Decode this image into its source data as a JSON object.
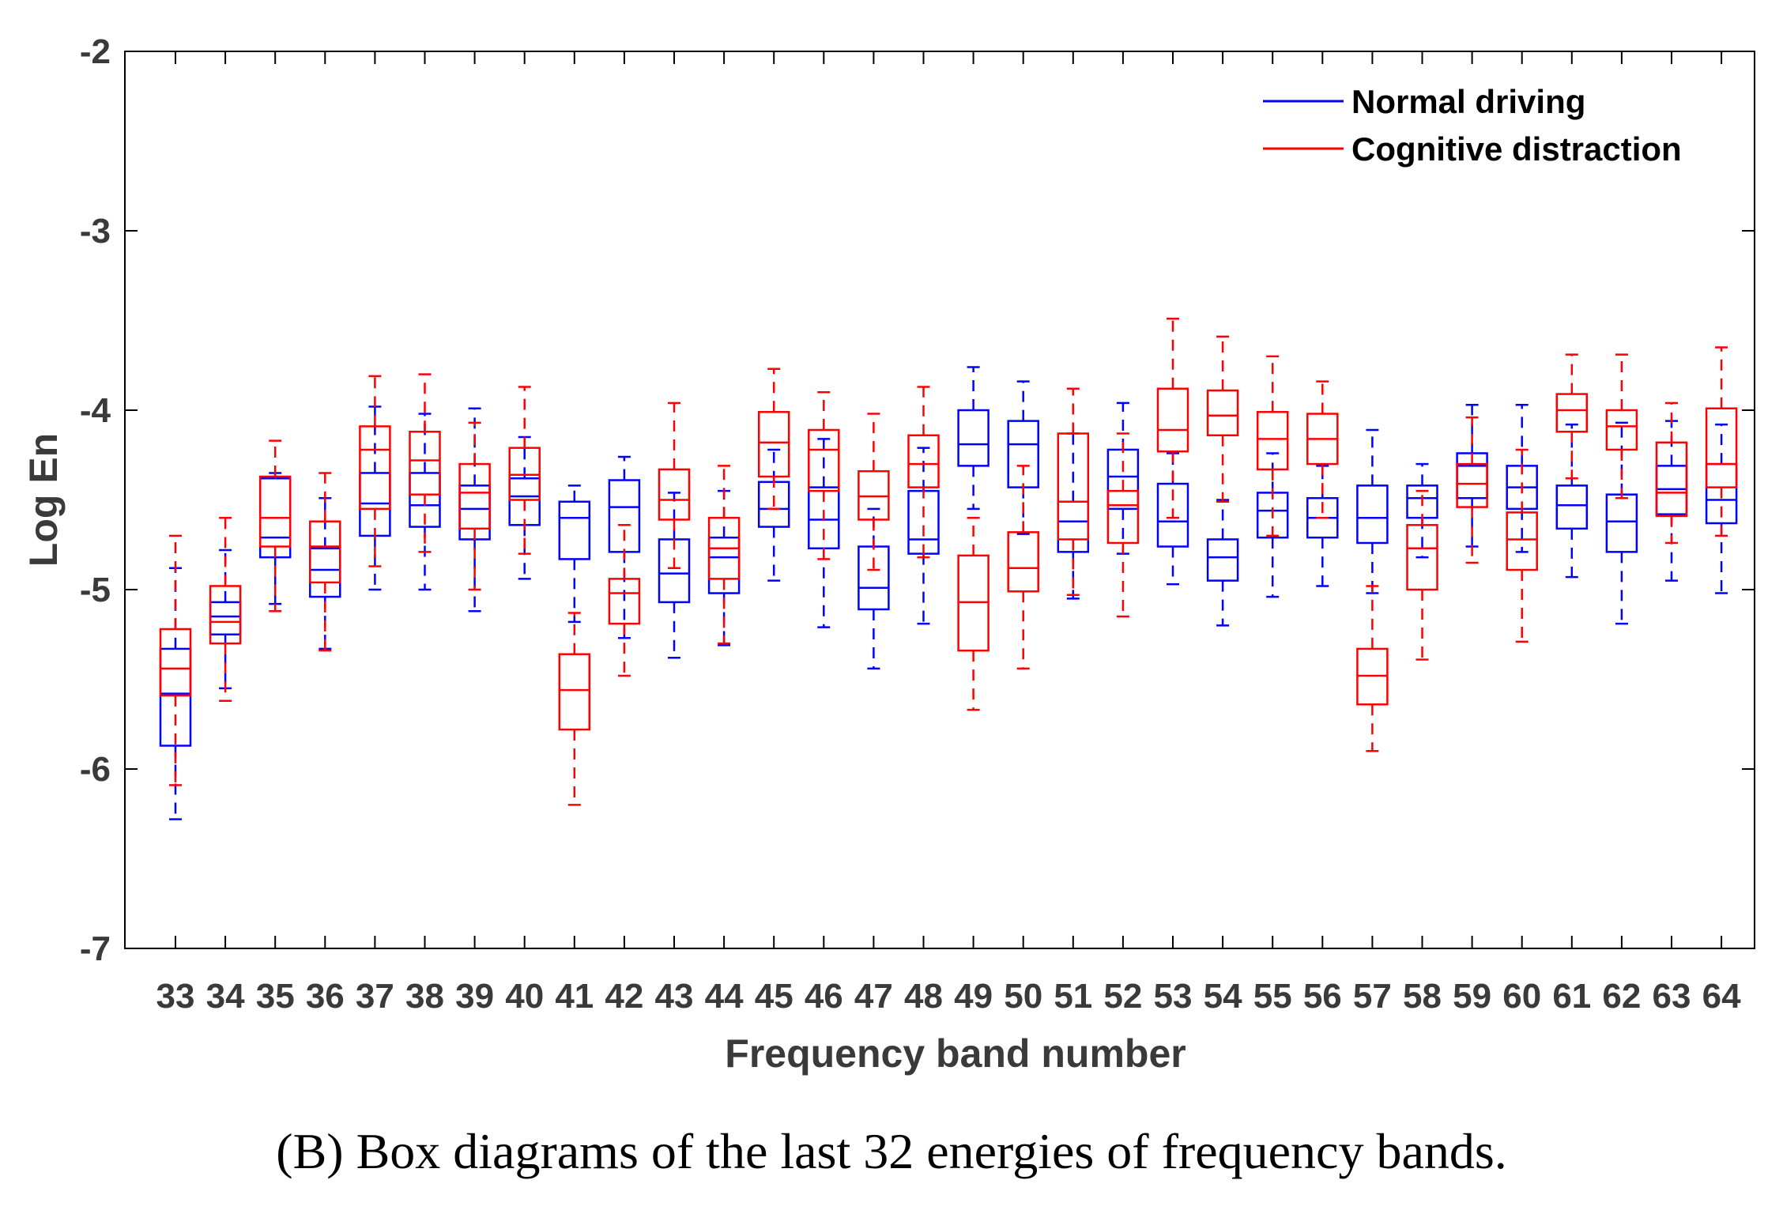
{
  "caption": "(B) Box diagrams of the last 32 energies of frequency bands.",
  "chart_data": {
    "type": "boxplot",
    "xlabel": "Frequency band number",
    "ylabel": "Log En",
    "ylim": [
      -7,
      -2
    ],
    "yticks": [
      -7,
      -6,
      -5,
      -4,
      -3,
      -2
    ],
    "categories": [
      "33",
      "34",
      "35",
      "36",
      "37",
      "38",
      "39",
      "40",
      "41",
      "42",
      "43",
      "44",
      "45",
      "46",
      "47",
      "48",
      "49",
      "50",
      "51",
      "52",
      "53",
      "54",
      "55",
      "56",
      "57",
      "58",
      "59",
      "60",
      "61",
      "62",
      "63",
      "64"
    ],
    "legend_position": "top-right",
    "series": [
      {
        "name": "Normal driving",
        "color": "#0000ff",
        "boxes": [
          {
            "wl": -6.28,
            "q1": -5.87,
            "med": -5.58,
            "q3": -5.33,
            "wh": -4.88
          },
          {
            "wl": -5.55,
            "q1": -5.25,
            "med": -5.15,
            "q3": -5.07,
            "wh": -4.78
          },
          {
            "wl": -5.08,
            "q1": -4.82,
            "med": -4.71,
            "q3": -4.38,
            "wh": -4.35
          },
          {
            "wl": -5.33,
            "q1": -5.04,
            "med": -4.89,
            "q3": -4.77,
            "wh": -4.49
          },
          {
            "wl": -5.0,
            "q1": -4.7,
            "med": -4.52,
            "q3": -4.35,
            "wh": -3.98
          },
          {
            "wl": -5.0,
            "q1": -4.65,
            "med": -4.53,
            "q3": -4.35,
            "wh": -4.02
          },
          {
            "wl": -5.12,
            "q1": -4.72,
            "med": -4.55,
            "q3": -4.42,
            "wh": -3.99
          },
          {
            "wl": -4.94,
            "q1": -4.64,
            "med": -4.48,
            "q3": -4.38,
            "wh": -4.15
          },
          {
            "wl": -5.18,
            "q1": -4.83,
            "med": -4.6,
            "q3": -4.51,
            "wh": -4.42
          },
          {
            "wl": -5.27,
            "q1": -4.79,
            "med": -4.54,
            "q3": -4.39,
            "wh": -4.26
          },
          {
            "wl": -5.38,
            "q1": -5.07,
            "med": -4.91,
            "q3": -4.72,
            "wh": -4.46
          },
          {
            "wl": -5.31,
            "q1": -5.02,
            "med": -4.82,
            "q3": -4.71,
            "wh": -4.45
          },
          {
            "wl": -4.95,
            "q1": -4.65,
            "med": -4.55,
            "q3": -4.4,
            "wh": -4.22
          },
          {
            "wl": -5.21,
            "q1": -4.77,
            "med": -4.61,
            "q3": -4.43,
            "wh": -4.16
          },
          {
            "wl": -5.44,
            "q1": -5.11,
            "med": -4.99,
            "q3": -4.76,
            "wh": -4.55
          },
          {
            "wl": -5.19,
            "q1": -4.8,
            "med": -4.72,
            "q3": -4.45,
            "wh": -4.21
          },
          {
            "wl": -4.55,
            "q1": -4.31,
            "med": -4.19,
            "q3": -4.0,
            "wh": -3.76
          },
          {
            "wl": -4.69,
            "q1": -4.43,
            "med": -4.19,
            "q3": -4.06,
            "wh": -3.84
          },
          {
            "wl": -5.05,
            "q1": -4.79,
            "med": -4.62,
            "q3": -4.51,
            "wh": -4.13
          },
          {
            "wl": -4.8,
            "q1": -4.55,
            "med": -4.37,
            "q3": -4.22,
            "wh": -3.96
          },
          {
            "wl": -4.97,
            "q1": -4.76,
            "med": -4.62,
            "q3": -4.41,
            "wh": -4.24
          },
          {
            "wl": -5.2,
            "q1": -4.95,
            "med": -4.82,
            "q3": -4.72,
            "wh": -4.5
          },
          {
            "wl": -5.04,
            "q1": -4.71,
            "med": -4.56,
            "q3": -4.46,
            "wh": -4.24
          },
          {
            "wl": -4.98,
            "q1": -4.71,
            "med": -4.6,
            "q3": -4.49,
            "wh": -4.31
          },
          {
            "wl": -5.02,
            "q1": -4.74,
            "med": -4.6,
            "q3": -4.42,
            "wh": -4.11
          },
          {
            "wl": -4.82,
            "q1": -4.6,
            "med": -4.49,
            "q3": -4.42,
            "wh": -4.3
          },
          {
            "wl": -4.76,
            "q1": -4.49,
            "med": -4.31,
            "q3": -4.24,
            "wh": -3.97
          },
          {
            "wl": -4.79,
            "q1": -4.55,
            "med": -4.43,
            "q3": -4.31,
            "wh": -3.97
          },
          {
            "wl": -4.93,
            "q1": -4.66,
            "med": -4.53,
            "q3": -4.42,
            "wh": -4.08
          },
          {
            "wl": -5.19,
            "q1": -4.79,
            "med": -4.62,
            "q3": -4.47,
            "wh": -4.07
          },
          {
            "wl": -4.95,
            "q1": -4.58,
            "med": -4.44,
            "q3": -4.31,
            "wh": -4.06
          },
          {
            "wl": -5.02,
            "q1": -4.63,
            "med": -4.5,
            "q3": -4.3,
            "wh": -4.08
          }
        ]
      },
      {
        "name": "Cognitive distraction",
        "color": "#ff0000",
        "boxes": [
          {
            "wl": -6.09,
            "q1": -5.59,
            "med": -5.44,
            "q3": -5.22,
            "wh": -4.7
          },
          {
            "wl": -5.62,
            "q1": -5.3,
            "med": -5.18,
            "q3": -4.98,
            "wh": -4.6
          },
          {
            "wl": -5.12,
            "q1": -4.76,
            "med": -4.6,
            "q3": -4.37,
            "wh": -4.17
          },
          {
            "wl": -5.34,
            "q1": -4.96,
            "med": -4.76,
            "q3": -4.62,
            "wh": -4.35
          },
          {
            "wl": -4.87,
            "q1": -4.55,
            "med": -4.22,
            "q3": -4.09,
            "wh": -3.81
          },
          {
            "wl": -4.79,
            "q1": -4.47,
            "med": -4.28,
            "q3": -4.12,
            "wh": -3.8
          },
          {
            "wl": -5.0,
            "q1": -4.66,
            "med": -4.46,
            "q3": -4.3,
            "wh": -4.07
          },
          {
            "wl": -4.8,
            "q1": -4.5,
            "med": -4.36,
            "q3": -4.21,
            "wh": -3.87
          },
          {
            "wl": -6.2,
            "q1": -5.78,
            "med": -5.56,
            "q3": -5.36,
            "wh": -5.13
          },
          {
            "wl": -5.48,
            "q1": -5.19,
            "med": -5.02,
            "q3": -4.94,
            "wh": -4.64
          },
          {
            "wl": -4.88,
            "q1": -4.61,
            "med": -4.5,
            "q3": -4.33,
            "wh": -3.96
          },
          {
            "wl": -5.3,
            "q1": -4.94,
            "med": -4.77,
            "q3": -4.6,
            "wh": -4.31
          },
          {
            "wl": -4.55,
            "q1": -4.37,
            "med": -4.18,
            "q3": -4.01,
            "wh": -3.77
          },
          {
            "wl": -4.83,
            "q1": -4.45,
            "med": -4.22,
            "q3": -4.11,
            "wh": -3.9
          },
          {
            "wl": -4.89,
            "q1": -4.61,
            "med": -4.48,
            "q3": -4.34,
            "wh": -4.02
          },
          {
            "wl": -4.82,
            "q1": -4.43,
            "med": -4.3,
            "q3": -4.14,
            "wh": -3.87
          },
          {
            "wl": -5.67,
            "q1": -5.34,
            "med": -5.07,
            "q3": -4.81,
            "wh": -4.6
          },
          {
            "wl": -5.44,
            "q1": -5.01,
            "med": -4.88,
            "q3": -4.68,
            "wh": -4.31
          },
          {
            "wl": -5.03,
            "q1": -4.72,
            "med": -4.51,
            "q3": -4.13,
            "wh": -3.88
          },
          {
            "wl": -5.15,
            "q1": -4.74,
            "med": -4.53,
            "q3": -4.45,
            "wh": -4.13
          },
          {
            "wl": -4.6,
            "q1": -4.23,
            "med": -4.11,
            "q3": -3.88,
            "wh": -3.49
          },
          {
            "wl": -4.51,
            "q1": -4.14,
            "med": -4.03,
            "q3": -3.89,
            "wh": -3.59
          },
          {
            "wl": -4.7,
            "q1": -4.33,
            "med": -4.16,
            "q3": -4.01,
            "wh": -3.7
          },
          {
            "wl": -4.6,
            "q1": -4.3,
            "med": -4.16,
            "q3": -4.02,
            "wh": -3.84
          },
          {
            "wl": -5.9,
            "q1": -5.64,
            "med": -5.48,
            "q3": -5.33,
            "wh": -4.98
          },
          {
            "wl": -5.39,
            "q1": -5.0,
            "med": -4.77,
            "q3": -4.64,
            "wh": -4.45
          },
          {
            "wl": -4.85,
            "q1": -4.54,
            "med": -4.41,
            "q3": -4.3,
            "wh": -4.04
          },
          {
            "wl": -5.29,
            "q1": -4.89,
            "med": -4.72,
            "q3": -4.57,
            "wh": -4.22
          },
          {
            "wl": -4.38,
            "q1": -4.12,
            "med": -4.0,
            "q3": -3.91,
            "wh": -3.69
          },
          {
            "wl": -4.49,
            "q1": -4.22,
            "med": -4.09,
            "q3": -4.0,
            "wh": -3.69
          },
          {
            "wl": -4.74,
            "q1": -4.59,
            "med": -4.46,
            "q3": -4.18,
            "wh": -3.96
          },
          {
            "wl": -4.7,
            "q1": -4.43,
            "med": -4.3,
            "q3": -3.99,
            "wh": -3.65
          }
        ]
      }
    ]
  }
}
